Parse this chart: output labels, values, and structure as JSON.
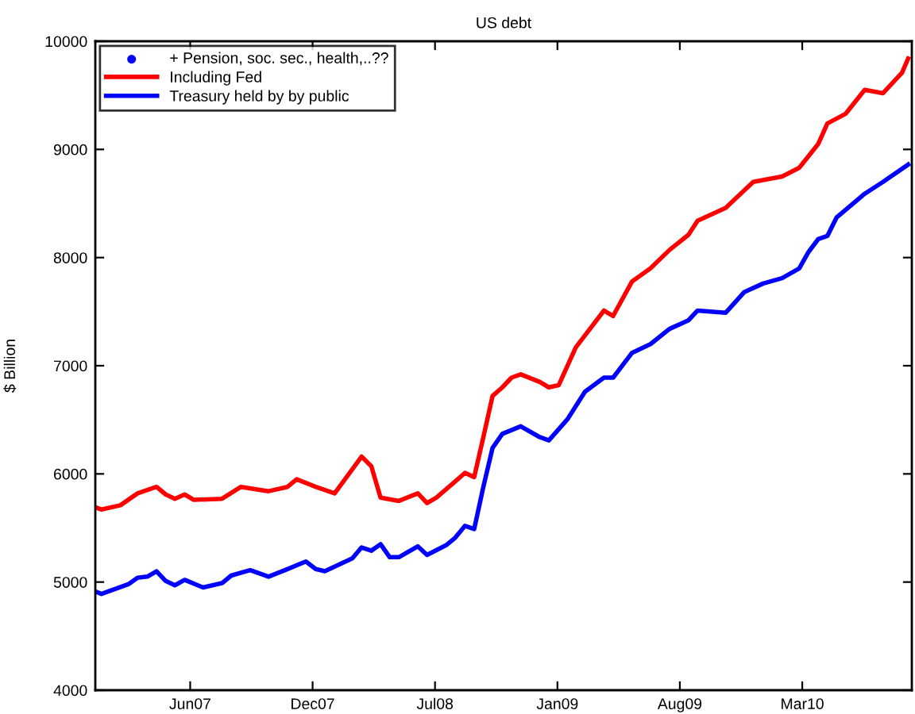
{
  "chart_data": {
    "type": "line",
    "title": "US debt",
    "ylabel": "$ Billion",
    "xlim": [
      "2007-01-06",
      "2010-09-01"
    ],
    "xticks": [
      {
        "value": "2007-06-10",
        "label": "Jun07"
      },
      {
        "value": "2007-12-27",
        "label": "Dec07"
      },
      {
        "value": "2008-07-14",
        "label": "Jul08"
      },
      {
        "value": "2009-01-30",
        "label": "Jan09"
      },
      {
        "value": "2009-08-18",
        "label": "Aug09"
      },
      {
        "value": "2010-03-06",
        "label": "Mar10"
      }
    ],
    "ylim": [
      4000,
      10000
    ],
    "yticks": [
      4000,
      5000,
      6000,
      7000,
      8000,
      9000,
      10000
    ],
    "grid": false,
    "legend": "top left",
    "series": [
      {
        "name": "+ Pension, soc. sec., health,..??",
        "type": "scatter",
        "marker": "circle",
        "color": "#0000ff"
      },
      {
        "name": "Including Fed",
        "color": "#ff0000",
        "x": [
          "2007-01-07",
          "2007-01-16",
          "2007-02-16",
          "2007-03-16",
          "2007-04-16",
          "2007-05-01",
          "2007-05-16",
          "2007-06-01",
          "2007-06-16",
          "2007-08-01",
          "2007-09-01",
          "2007-10-16",
          "2007-11-16",
          "2007-12-01",
          "2008-01-01",
          "2008-02-01",
          "2008-03-16",
          "2008-04-01",
          "2008-04-16",
          "2008-05-16",
          "2008-06-16",
          "2008-07-01",
          "2008-07-16",
          "2008-08-16",
          "2008-09-01",
          "2008-09-16",
          "2008-10-01",
          "2008-10-16",
          "2008-11-01",
          "2008-11-16",
          "2008-12-01",
          "2009-01-01",
          "2009-01-16",
          "2009-02-01",
          "2009-03-01",
          "2009-04-16",
          "2009-05-01",
          "2009-06-01",
          "2009-07-01",
          "2009-08-01",
          "2009-09-01",
          "2009-09-16",
          "2009-11-01",
          "2009-12-16",
          "2010-02-01",
          "2010-03-01",
          "2010-04-01",
          "2010-04-16",
          "2010-05-16",
          "2010-06-16",
          "2010-07-16",
          "2010-08-16",
          "2010-08-26"
        ],
        "values": [
          5690,
          5670,
          5710,
          5820,
          5880,
          5810,
          5770,
          5810,
          5760,
          5770,
          5880,
          5840,
          5880,
          5950,
          5880,
          5820,
          6160,
          6070,
          5780,
          5750,
          5820,
          5730,
          5780,
          5930,
          6010,
          5970,
          6340,
          6720,
          6800,
          6890,
          6920,
          6850,
          6800,
          6820,
          7170,
          7510,
          7460,
          7780,
          7900,
          8070,
          8210,
          8340,
          8460,
          8700,
          8750,
          8830,
          9050,
          9240,
          9330,
          9550,
          9520,
          9710,
          9840
        ]
      },
      {
        "name": "Treasury held by by public",
        "color": "#0000ff",
        "x": [
          "2007-01-07",
          "2007-01-16",
          "2007-03-01",
          "2007-03-16",
          "2007-04-01",
          "2007-04-16",
          "2007-05-01",
          "2007-05-16",
          "2007-06-01",
          "2007-07-01",
          "2007-08-01",
          "2007-08-16",
          "2007-09-16",
          "2007-10-16",
          "2007-11-16",
          "2007-12-16",
          "2008-01-01",
          "2008-01-16",
          "2008-03-01",
          "2008-03-16",
          "2008-04-01",
          "2008-04-16",
          "2008-05-01",
          "2008-05-16",
          "2008-06-16",
          "2008-07-01",
          "2008-08-01",
          "2008-08-16",
          "2008-09-01",
          "2008-09-16",
          "2008-10-01",
          "2008-10-16",
          "2008-11-01",
          "2008-12-01",
          "2009-01-01",
          "2009-01-16",
          "2009-02-16",
          "2009-03-16",
          "2009-04-16",
          "2009-05-01",
          "2009-06-01",
          "2009-07-01",
          "2009-08-01",
          "2009-09-01",
          "2009-09-16",
          "2009-11-01",
          "2009-12-01",
          "2010-01-01",
          "2010-02-01",
          "2010-03-01",
          "2010-03-16",
          "2010-04-01",
          "2010-04-16",
          "2010-05-01",
          "2010-06-16",
          "2010-07-16",
          "2010-08-26"
        ],
        "values": [
          4910,
          4890,
          4980,
          5040,
          5050,
          5100,
          5010,
          4970,
          5020,
          4950,
          4990,
          5060,
          5110,
          5050,
          5120,
          5190,
          5120,
          5100,
          5220,
          5320,
          5290,
          5350,
          5230,
          5230,
          5330,
          5250,
          5340,
          5410,
          5520,
          5490,
          5880,
          6240,
          6370,
          6440,
          6340,
          6310,
          6510,
          6760,
          6890,
          6890,
          7120,
          7200,
          7340,
          7420,
          7510,
          7490,
          7680,
          7760,
          7810,
          7900,
          8050,
          8170,
          8200,
          8370,
          8590,
          8700,
          8860
        ]
      }
    ]
  }
}
